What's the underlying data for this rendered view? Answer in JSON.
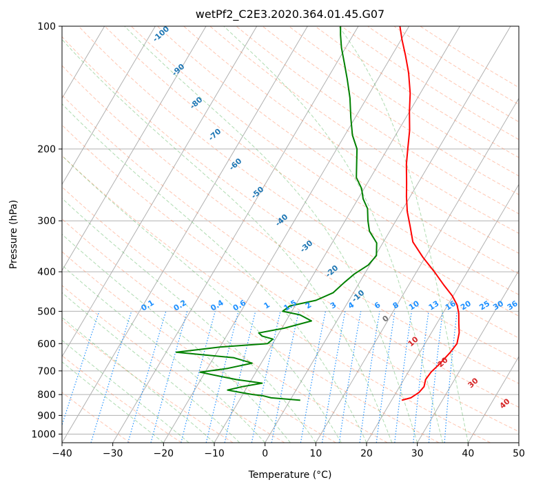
{
  "chart_data": {
    "type": "line",
    "chart_kind": "skew-T log-P diagram",
    "title": "wetPf2_C2E3.2020.364.01.45.G07",
    "xlabel": "Temperature (°C)",
    "ylabel": "Pressure (hPa)",
    "xlim": [
      -40,
      50
    ],
    "ylim": [
      1050,
      100
    ],
    "y_scale": "log",
    "grid": true,
    "x_ticks": [
      -40,
      -30,
      -20,
      -10,
      0,
      10,
      20,
      30,
      40,
      50
    ],
    "y_ticks": [
      100,
      200,
      300,
      400,
      500,
      600,
      700,
      800,
      900,
      1000
    ],
    "colors": {
      "temperature": "#ff0000",
      "dewpoint": "#008000",
      "isotherm_label": "#1f77b4",
      "mixing_ratio": "#1e90ff",
      "dry_adiabat": "#ff7f50",
      "moist_adiabat": "#4caf50",
      "skewed_isotherm_red_labels": "#d62728",
      "isohume_brown": "#c8a070"
    },
    "isotherm_labels": [
      "-100",
      "-90",
      "-80",
      "-70",
      "-60",
      "-50",
      "-40",
      "-30",
      "-20",
      "-10",
      "0",
      "10",
      "20",
      "30",
      "40"
    ],
    "mixing_ratio_labels": [
      "0.1",
      "0.2",
      "0.4",
      "0.6",
      "1",
      "1.5",
      "2",
      "3",
      "4",
      "6",
      "8",
      "10",
      "13",
      "16",
      "20",
      "25",
      "30",
      "36"
    ],
    "series": [
      {
        "name": "Temperature",
        "points": [
          [
            22.0,
            826
          ],
          [
            23.5,
            815
          ],
          [
            24.5,
            790
          ],
          [
            24.8,
            765
          ],
          [
            24.3,
            735
          ],
          [
            24.5,
            705
          ],
          [
            25.3,
            670
          ],
          [
            26.0,
            630
          ],
          [
            26.3,
            600
          ],
          [
            25.5,
            565
          ],
          [
            24.3,
            535
          ],
          [
            23.1,
            505
          ],
          [
            21.8,
            482
          ],
          [
            19.8,
            458
          ],
          [
            16.8,
            430
          ],
          [
            13.5,
            400
          ],
          [
            9.5,
            368
          ],
          [
            5.8,
            338
          ],
          [
            3.5,
            310
          ],
          [
            1.2,
            285
          ],
          [
            -0.7,
            262
          ],
          [
            -2.3,
            242
          ],
          [
            -4.5,
            218
          ],
          [
            -6.0,
            200
          ],
          [
            -7.8,
            180
          ],
          [
            -10.0,
            162
          ],
          [
            -12.0,
            146
          ],
          [
            -14.7,
            130
          ],
          [
            -17.3,
            118
          ],
          [
            -19.8,
            108
          ],
          [
            -21.8,
            100
          ]
        ]
      },
      {
        "name": "Dewpoint",
        "points": [
          [
            2.0,
            826
          ],
          [
            -4.0,
            815
          ],
          [
            -6.0,
            805
          ],
          [
            -8.0,
            800
          ],
          [
            -10.0,
            793
          ],
          [
            -13.5,
            780
          ],
          [
            -11.0,
            765
          ],
          [
            -7.5,
            750
          ],
          [
            -13.0,
            735
          ],
          [
            -17.0,
            720
          ],
          [
            -21.0,
            705
          ],
          [
            -16.0,
            690
          ],
          [
            -11.8,
            670
          ],
          [
            -16.0,
            650
          ],
          [
            -28.0,
            630
          ],
          [
            -20.0,
            612
          ],
          [
            -11.0,
            600
          ],
          [
            -10.5,
            585
          ],
          [
            -13.0,
            575
          ],
          [
            -14.0,
            565
          ],
          [
            -9.5,
            550
          ],
          [
            -5.0,
            528
          ],
          [
            -8.0,
            510
          ],
          [
            -11.8,
            500
          ],
          [
            -11.0,
            485
          ],
          [
            -6.5,
            470
          ],
          [
            -4.0,
            450
          ],
          [
            -3.0,
            425
          ],
          [
            -2.0,
            405
          ],
          [
            -0.3,
            385
          ],
          [
            0.2,
            365
          ],
          [
            -1.2,
            340
          ],
          [
            -4.0,
            318
          ],
          [
            -5.5,
            300
          ],
          [
            -7.0,
            280
          ],
          [
            -9.0,
            265
          ],
          [
            -10.5,
            250
          ],
          [
            -12.8,
            235
          ],
          [
            -14.3,
            218
          ],
          [
            -16.0,
            200
          ],
          [
            -18.5,
            185
          ],
          [
            -20.8,
            168
          ],
          [
            -23.3,
            150
          ],
          [
            -26.0,
            135
          ],
          [
            -28.5,
            123
          ],
          [
            -30.8,
            113
          ],
          [
            -32.5,
            105
          ],
          [
            -33.5,
            100
          ]
        ]
      }
    ]
  }
}
